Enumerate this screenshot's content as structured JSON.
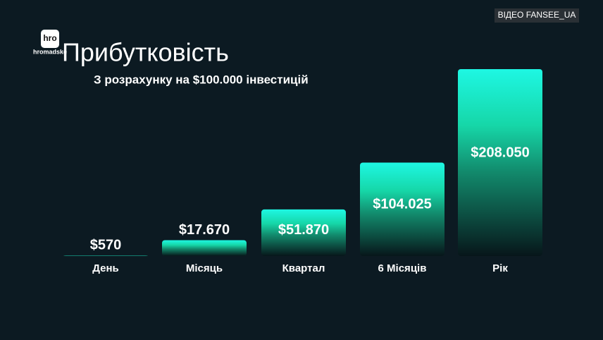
{
  "chart_data": {
    "type": "bar",
    "title": "Прибутковість",
    "subtitle": "З розрахунку на  $100.000 інвестицій",
    "categories": [
      "День",
      "Місяць",
      "Квартал",
      "6 Місяців",
      "Рік"
    ],
    "values": [
      570,
      17670,
      51870,
      104025,
      208050
    ],
    "value_labels": [
      "$570",
      "$17.670",
      "$51.870",
      "$104.025",
      "$208.050"
    ],
    "color": "#19f5d8"
  },
  "logo": {
    "mark": "hro",
    "name": "hromadske"
  },
  "watermark": "ВІДЕО FANSEE_UA"
}
